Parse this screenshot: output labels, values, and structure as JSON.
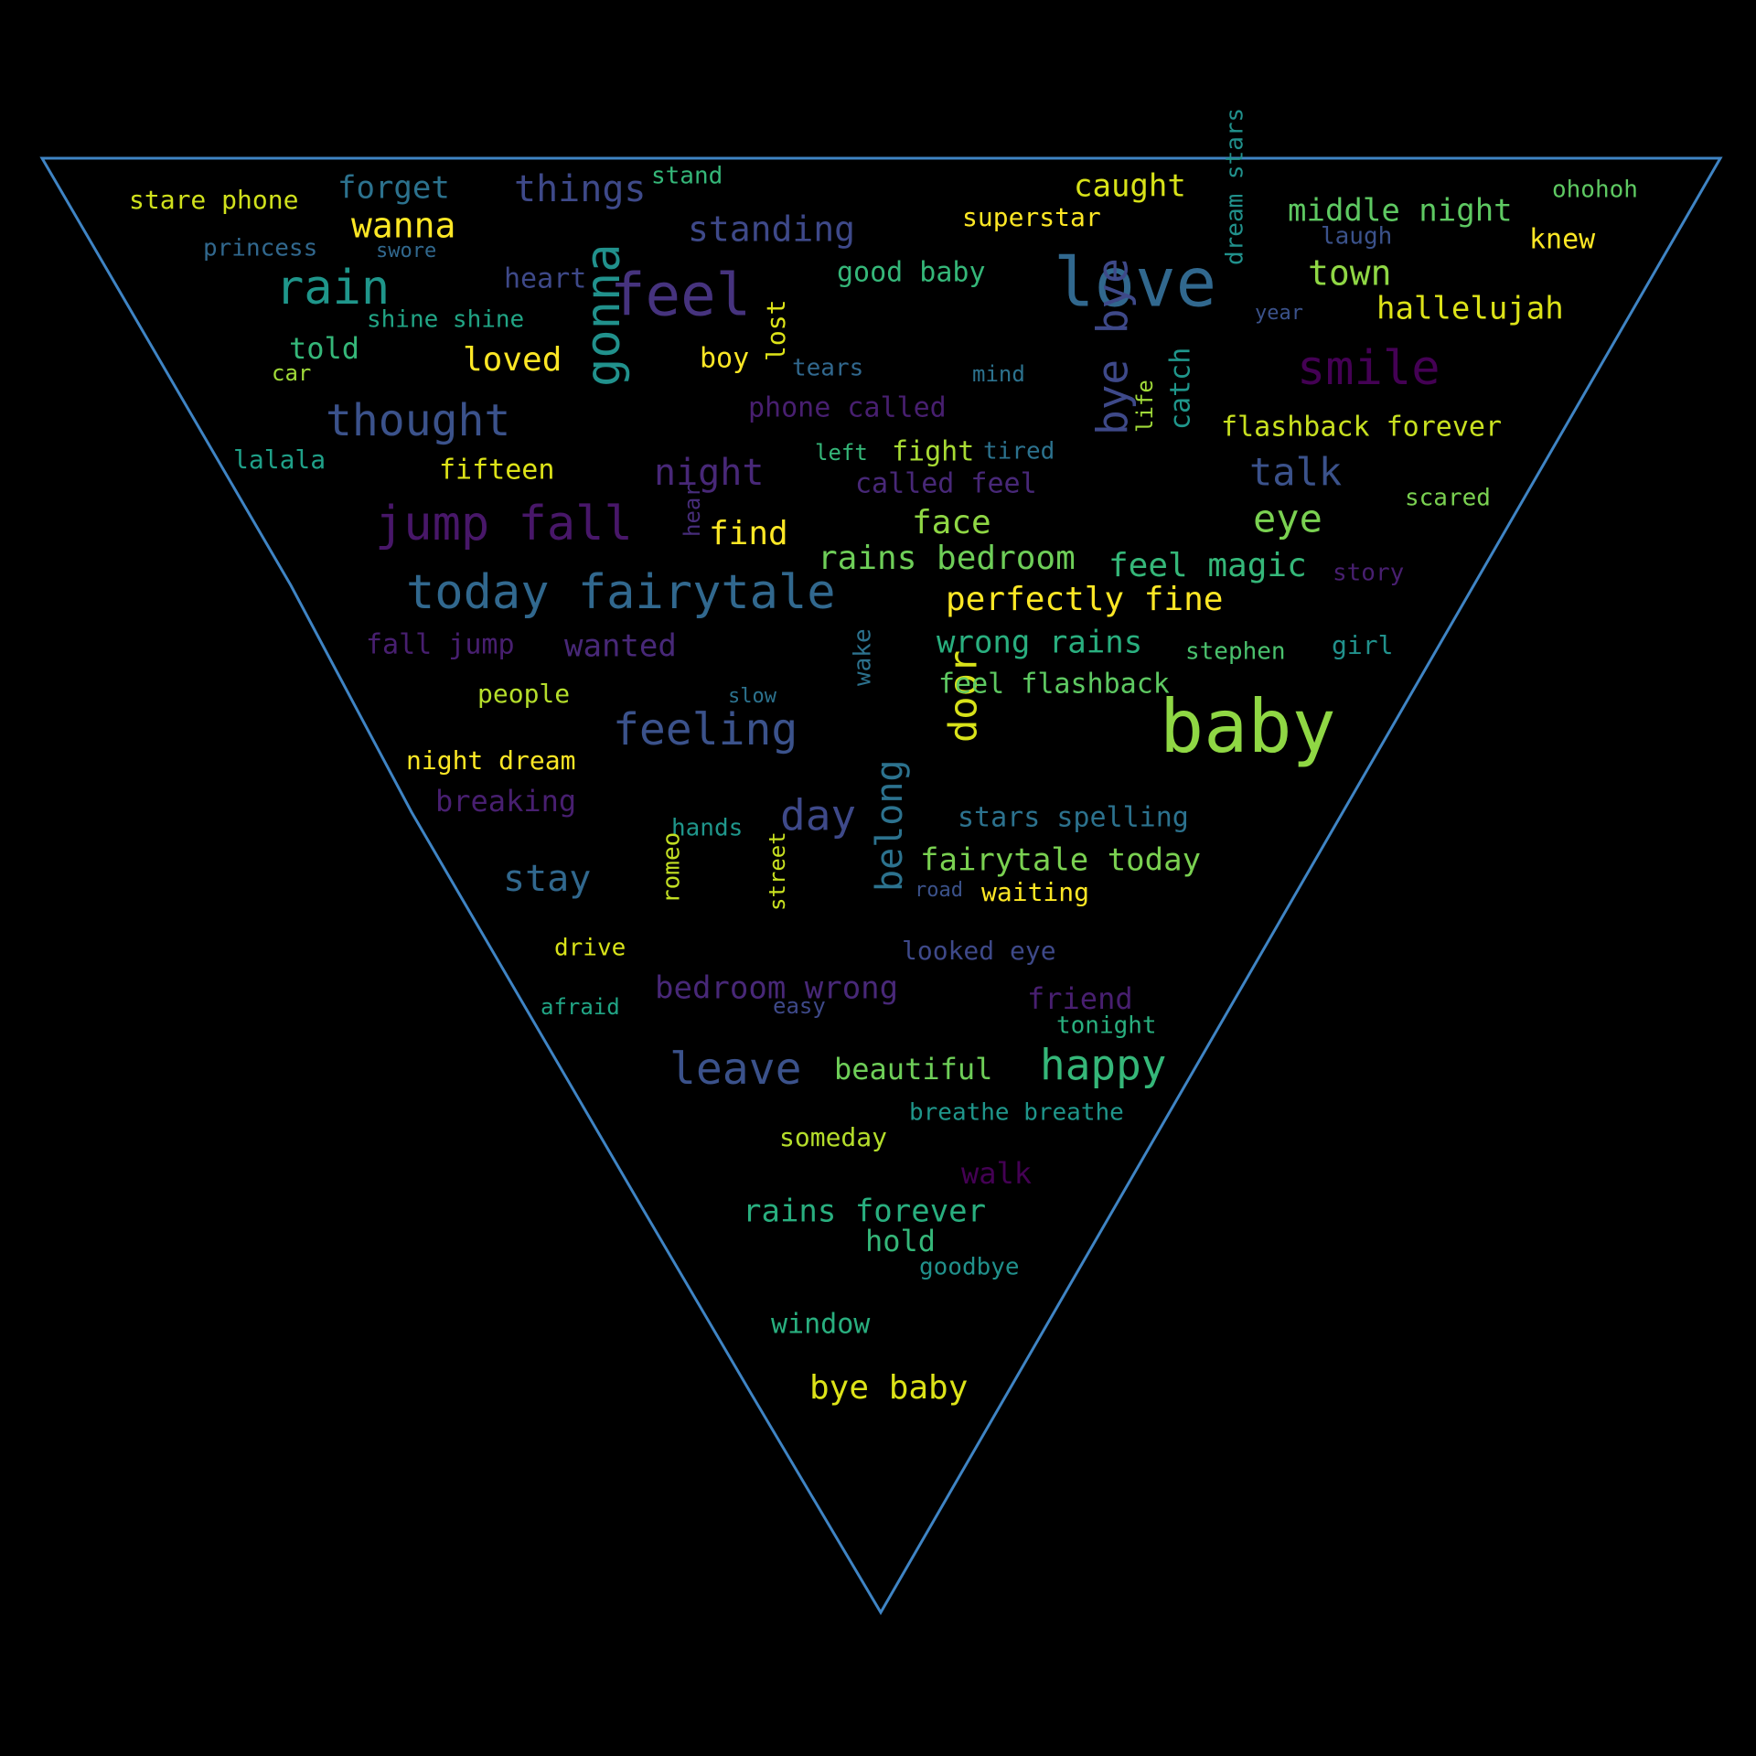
{
  "words": [
    {
      "text": "baby",
      "color": "#8fd744"
    },
    {
      "text": "love",
      "color": "#31688e"
    },
    {
      "text": "feel",
      "color": "#46337e"
    },
    {
      "text": "smile",
      "color": "#440154"
    },
    {
      "text": "gonna",
      "color": "#21918c"
    },
    {
      "text": "today fairytale",
      "color": "#31688e"
    },
    {
      "text": "jump fall",
      "color": "#481769"
    },
    {
      "text": "rain",
      "color": "#1f968b"
    },
    {
      "text": "feeling",
      "color": "#3b528b"
    },
    {
      "text": "thought",
      "color": "#3b528b"
    },
    {
      "text": "bye bye",
      "color": "#3e4989"
    },
    {
      "text": "leave",
      "color": "#3b528b"
    },
    {
      "text": "happy",
      "color": "#35b779"
    },
    {
      "text": "day",
      "color": "#3e4989"
    },
    {
      "text": "door",
      "color": "#d8e219"
    },
    {
      "text": "belong",
      "color": "#2c728e"
    },
    {
      "text": "things",
      "color": "#3e4989"
    },
    {
      "text": "standing",
      "color": "#3e4989"
    },
    {
      "text": "night",
      "color": "#482878"
    },
    {
      "text": "stay",
      "color": "#31688e"
    },
    {
      "text": "talk",
      "color": "#3b528b"
    },
    {
      "text": "eye",
      "color": "#7ad151"
    },
    {
      "text": "wanna",
      "color": "#fde725"
    },
    {
      "text": "town",
      "color": "#8fd744"
    },
    {
      "text": "middle night",
      "color": "#5ec962"
    },
    {
      "text": "hallelujah",
      "color": "#dde318"
    },
    {
      "text": "caught",
      "color": "#d8e219"
    },
    {
      "text": "forget",
      "color": "#2c728e"
    },
    {
      "text": "perfectly fine",
      "color": "#fde725"
    },
    {
      "text": "feel magic",
      "color": "#35b779"
    },
    {
      "text": "rains bedroom",
      "color": "#6ece58"
    },
    {
      "text": "face",
      "color": "#8fd744"
    },
    {
      "text": "wrong rains",
      "color": "#29af7f"
    },
    {
      "text": "fairytale today",
      "color": "#7ad151"
    },
    {
      "text": "bedroom wrong",
      "color": "#482878"
    },
    {
      "text": "wanted",
      "color": "#482878"
    },
    {
      "text": "loved",
      "color": "#fde725"
    },
    {
      "text": "find",
      "color": "#fde725"
    },
    {
      "text": "bye baby",
      "color": "#dde318"
    },
    {
      "text": "rains forever",
      "color": "#29af7f"
    },
    {
      "text": "breaking",
      "color": "#481f70"
    },
    {
      "text": "friend",
      "color": "#481f70"
    },
    {
      "text": "catch",
      "color": "#1f968b"
    },
    {
      "text": "stare phone",
      "color": "#d0e11c"
    },
    {
      "text": "flashback forever",
      "color": "#c8e020"
    },
    {
      "text": "feel flashback",
      "color": "#5ec962"
    },
    {
      "text": "fight",
      "color": "#a8db34"
    },
    {
      "text": "beautiful",
      "color": "#6ece58"
    },
    {
      "text": "stars spelling",
      "color": "#2c728e"
    },
    {
      "text": "fifteen",
      "color": "#dde318"
    },
    {
      "text": "told",
      "color": "#35b779"
    },
    {
      "text": "heart",
      "color": "#3e4989"
    },
    {
      "text": "phone called",
      "color": "#481f70"
    },
    {
      "text": "called feel",
      "color": "#482878"
    },
    {
      "text": "fall jump",
      "color": "#481f70"
    },
    {
      "text": "good baby",
      "color": "#35b779"
    },
    {
      "text": "shine shine",
      "color": "#21a585"
    },
    {
      "text": "superstar",
      "color": "#fde725"
    },
    {
      "text": "knew",
      "color": "#fde725"
    },
    {
      "text": "walk",
      "color": "#440154"
    },
    {
      "text": "lost",
      "color": "#dde318"
    },
    {
      "text": "boy",
      "color": "#fde725"
    },
    {
      "text": "people",
      "color": "#b5de2b"
    },
    {
      "text": "night dream",
      "color": "#fde725"
    },
    {
      "text": "hold",
      "color": "#35b779"
    },
    {
      "text": "window",
      "color": "#29af7f"
    },
    {
      "text": "someday",
      "color": "#b5de2b"
    },
    {
      "text": "hands",
      "color": "#1f968b"
    },
    {
      "text": "waiting",
      "color": "#fde725"
    },
    {
      "text": "looked eye",
      "color": "#3e4989"
    },
    {
      "text": "romeo",
      "color": "#c2df23"
    },
    {
      "text": "girl",
      "color": "#21918c"
    },
    {
      "text": "stephen",
      "color": "#4ac16d"
    },
    {
      "text": "stand",
      "color": "#35b779"
    },
    {
      "text": "princess",
      "color": "#31688e"
    },
    {
      "text": "dream stars",
      "color": "#21918c"
    },
    {
      "text": "lalala",
      "color": "#1fa088"
    },
    {
      "text": "laugh",
      "color": "#3b528b"
    },
    {
      "text": "breathe breathe",
      "color": "#1f968b"
    },
    {
      "text": "wake",
      "color": "#2c728e"
    },
    {
      "text": "tonight",
      "color": "#29af7f"
    },
    {
      "text": "drive",
      "color": "#d8e219"
    },
    {
      "text": "scared",
      "color": "#7ad151"
    },
    {
      "text": "story",
      "color": "#481f70"
    },
    {
      "text": "ohohoh",
      "color": "#5ec962"
    },
    {
      "text": "tired",
      "color": "#2c728e"
    },
    {
      "text": "tears",
      "color": "#31688e"
    },
    {
      "text": "goodbye",
      "color": "#21918c"
    },
    {
      "text": "street",
      "color": "#c8e020"
    },
    {
      "text": "left",
      "color": "#35b779"
    },
    {
      "text": "life",
      "color": "#a0da39"
    },
    {
      "text": "hear",
      "color": "#472d7b"
    },
    {
      "text": "afraid",
      "color": "#21a585"
    },
    {
      "text": "easy",
      "color": "#3e4989"
    },
    {
      "text": "mind",
      "color": "#2c728e"
    },
    {
      "text": "car",
      "color": "#a0da39"
    },
    {
      "text": "year",
      "color": "#3b528b"
    },
    {
      "text": "slow",
      "color": "#2c728e"
    },
    {
      "text": "swore",
      "color": "#31688e"
    },
    {
      "text": "road",
      "color": "#3b528b"
    }
  ]
}
